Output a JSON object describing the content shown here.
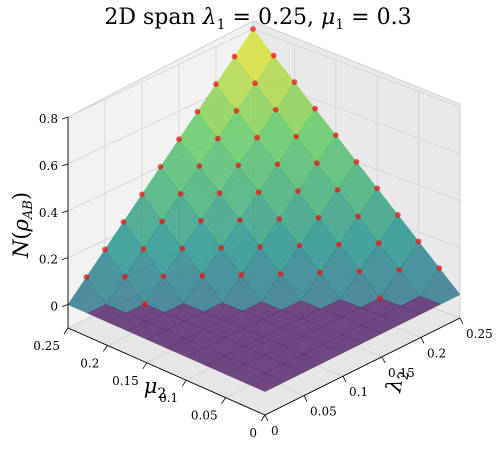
{
  "chart_data": {
    "type": "surface3d",
    "title": "2D span λ₁ = 0.25, μ₁ = 0.3",
    "xlabel": "λ₂",
    "ylabel": "μ₂",
    "zlabel": "N(ρ_AB)",
    "x_range": [
      0,
      0.25
    ],
    "y_range": [
      0,
      0.25
    ],
    "z_range": [
      -0.1,
      0.8
    ],
    "x_ticks": [
      "0",
      "0.05",
      "0.1",
      "0.15",
      "0.2",
      "0.25"
    ],
    "y_ticks": [
      "0",
      "0.05",
      "0.1",
      "0.15",
      "0.2",
      "0.25"
    ],
    "z_ticks": [
      "0",
      "0.2",
      "0.4",
      "0.6",
      "0.8"
    ],
    "grid": true,
    "surface_colormap": "viridis",
    "entangled_region_color": "#5b2c6f",
    "scatter_color": "#ee1111",
    "grid_resolution": 10,
    "surface_model": "N = max(0, 3.2·λ₂ + 3.2·μ₂ − 0.8)"
  }
}
